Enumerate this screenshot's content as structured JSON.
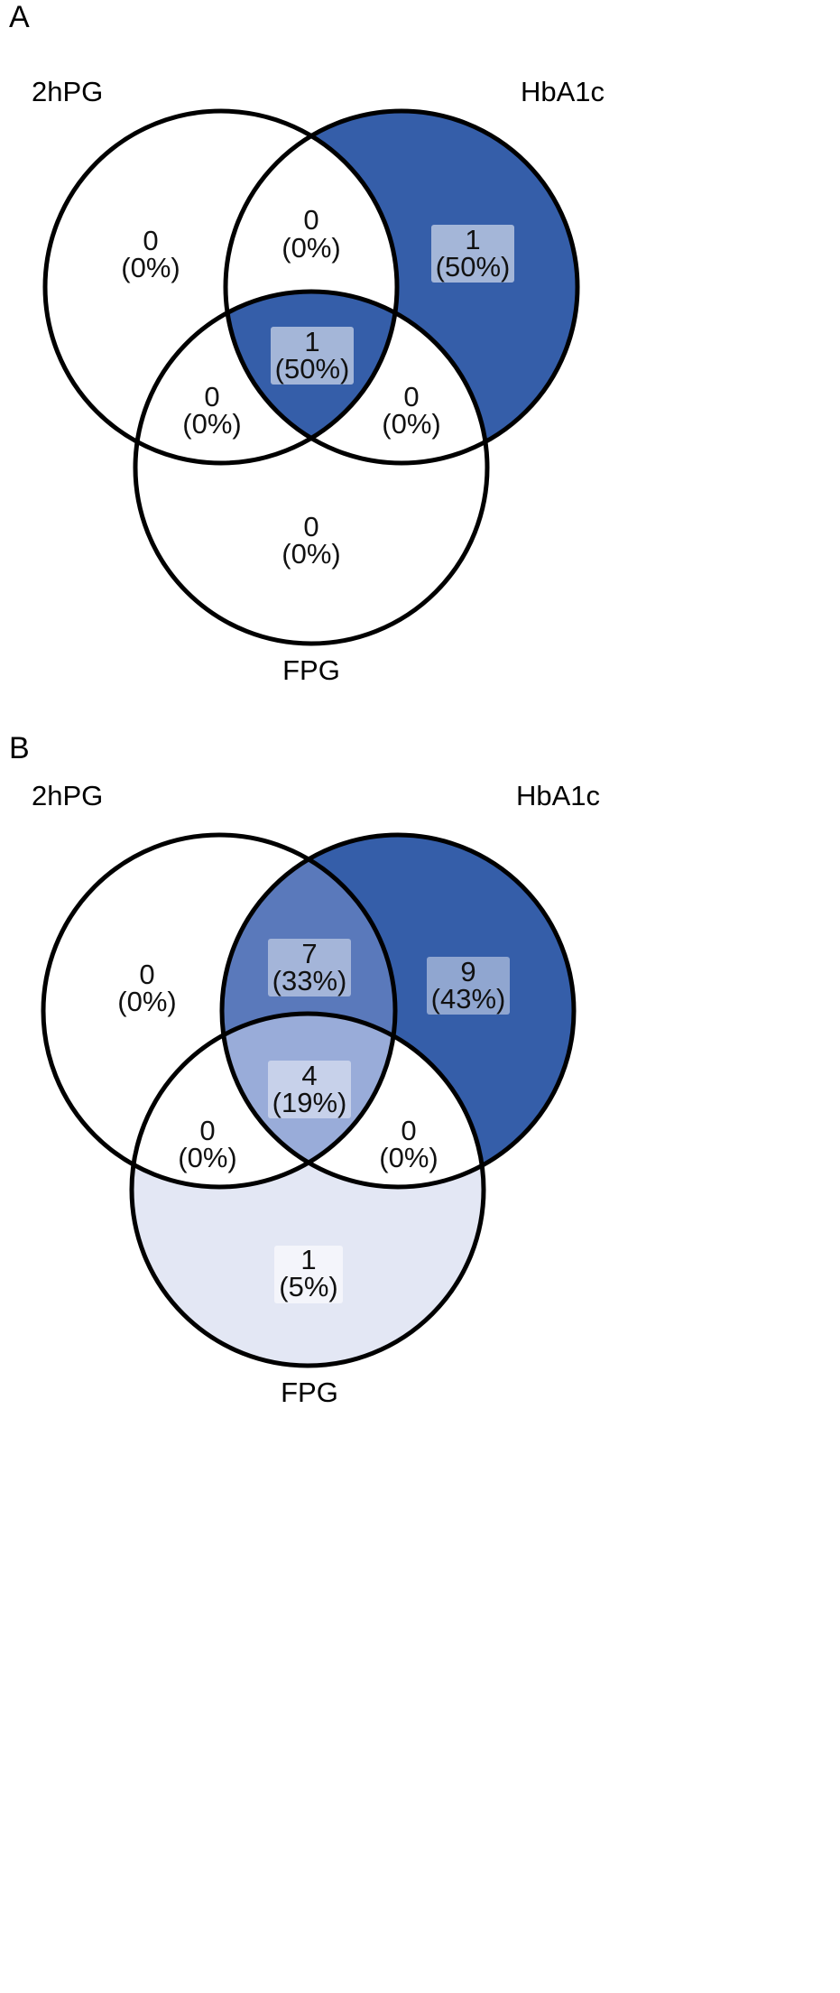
{
  "panels": [
    {
      "letter": "A",
      "set_labels": {
        "left": "2hPG",
        "right": "HbA1c",
        "bottom": "FPG"
      },
      "regions": {
        "only_2hPG": {
          "count": "0",
          "pct": "(0%)"
        },
        "2hPG_HbA1c": {
          "count": "0",
          "pct": "(0%)"
        },
        "only_HbA1c": {
          "count": "1",
          "pct": "(50%)"
        },
        "all_three": {
          "count": "1",
          "pct": "(50%)"
        },
        "2hPG_FPG": {
          "count": "0",
          "pct": "(0%)"
        },
        "HbA1c_FPG": {
          "count": "0",
          "pct": "(0%)"
        },
        "only_FPG": {
          "count": "0",
          "pct": "(0%)"
        }
      },
      "fills": {
        "only_2hPG": "#ffffff",
        "2hPG_HbA1c": "#ffffff",
        "only_HbA1c": "#355ea9",
        "all_three": "#355ea9",
        "2hPG_FPG": "#ffffff",
        "HbA1c_FPG": "#ffffff",
        "only_FPG": "#ffffff"
      }
    },
    {
      "letter": "B",
      "set_labels": {
        "left": "2hPG",
        "right": "HbA1c",
        "bottom": "FPG"
      },
      "regions": {
        "only_2hPG": {
          "count": "0",
          "pct": "(0%)"
        },
        "2hPG_HbA1c": {
          "count": "7",
          "pct": "(33%)"
        },
        "only_HbA1c": {
          "count": "9",
          "pct": "(43%)"
        },
        "all_three": {
          "count": "4",
          "pct": "(19%)"
        },
        "2hPG_FPG": {
          "count": "0",
          "pct": "(0%)"
        },
        "HbA1c_FPG": {
          "count": "0",
          "pct": "(0%)"
        },
        "only_FPG": {
          "count": "1",
          "pct": "(5%)"
        }
      },
      "fills": {
        "only_2hPG": "#ffffff",
        "2hPG_HbA1c": "#5a79bb",
        "only_HbA1c": "#355ea9",
        "all_three": "#99acd9",
        "2hPG_FPG": "#ffffff",
        "HbA1c_FPG": "#ffffff",
        "only_FPG": "#e3e7f4"
      }
    }
  ]
}
